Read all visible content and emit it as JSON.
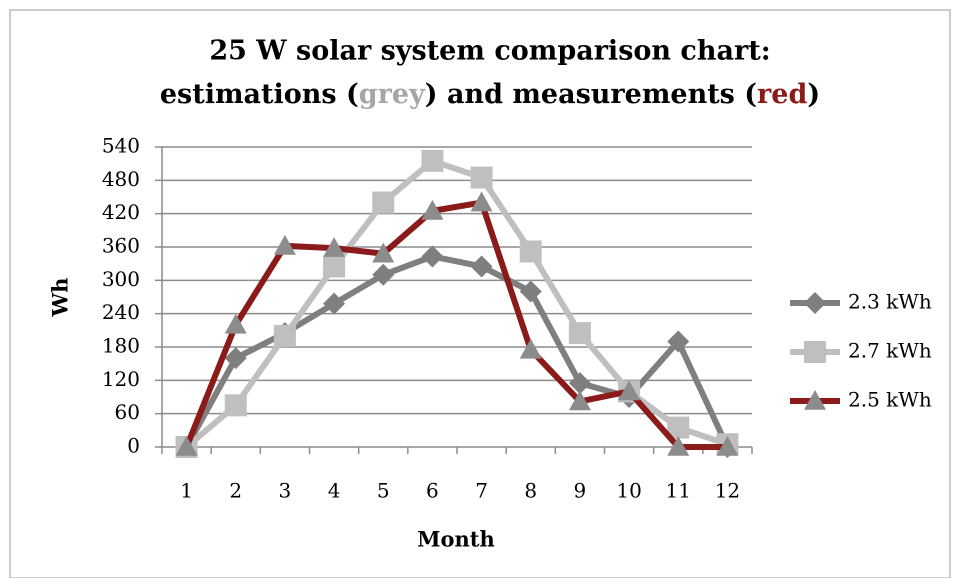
{
  "chart_data": {
    "type": "line",
    "title": {
      "line1": "25 W solar system comparison chart:",
      "line2": [
        {
          "text": "estimations ("
        },
        {
          "text": "grey",
          "color": "#a6a6a6"
        },
        {
          "text": ") and measurements ("
        },
        {
          "text": "red",
          "color": "#8b1a1a"
        },
        {
          "text": ")"
        }
      ]
    },
    "x_label": "Month",
    "y_label": "Wh",
    "categories": [
      "1",
      "2",
      "3",
      "4",
      "5",
      "6",
      "7",
      "8",
      "9",
      "10",
      "11",
      "12"
    ],
    "series": [
      {
        "name": "2.3 kWh",
        "color": "#7f7f7f",
        "marker": "diamond",
        "marker_color": "#7f7f7f",
        "values": [
          0,
          160,
          205,
          258,
          310,
          343,
          325,
          280,
          115,
          90,
          190,
          0
        ]
      },
      {
        "name": "2.7 kWh",
        "color": "#bfbfbf",
        "marker": "square",
        "marker_color": "#bfbfbf",
        "values": [
          0,
          75,
          200,
          325,
          440,
          515,
          485,
          352,
          205,
          100,
          35,
          5
        ]
      },
      {
        "name": "2.5 kWh",
        "color": "#8b1a1a",
        "marker": "triangle",
        "marker_color": "#8c8c8c",
        "values": [
          0,
          220,
          362,
          358,
          348,
          425,
          440,
          175,
          82,
          100,
          0,
          0
        ]
      }
    ],
    "ylim": [
      0,
      540
    ],
    "yticks": [
      0,
      60,
      120,
      180,
      240,
      300,
      360,
      420,
      480,
      540
    ],
    "grid": true,
    "legend": "right"
  }
}
